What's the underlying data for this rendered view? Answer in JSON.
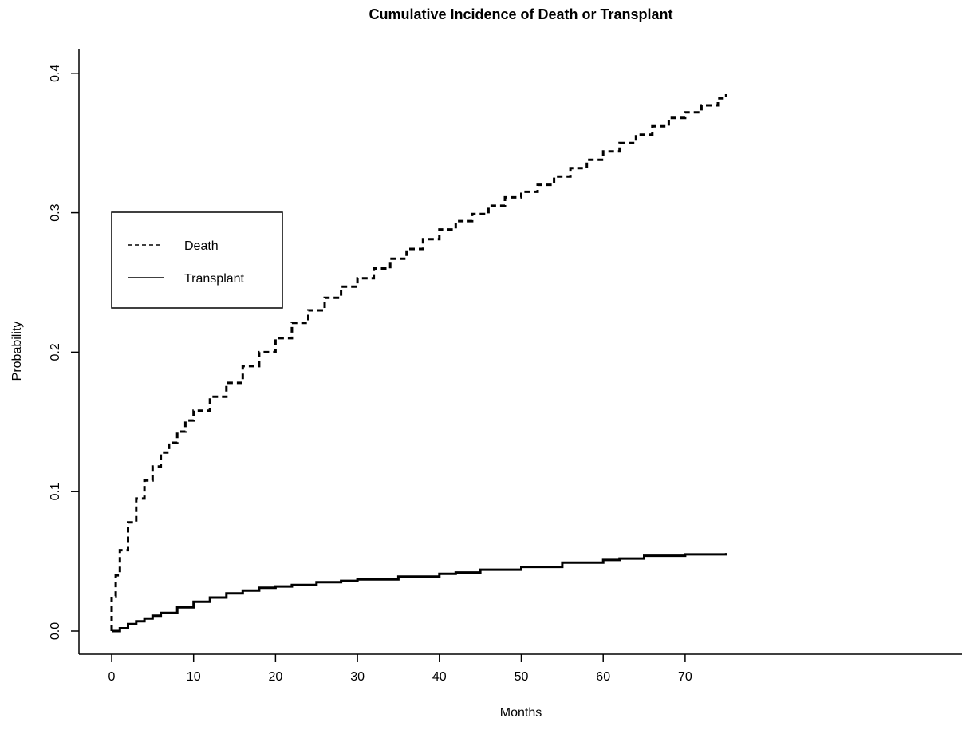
{
  "chart_data": {
    "type": "line",
    "title": "Cumulative Incidence of Death or Transplant",
    "xlabel": "Months",
    "ylabel": "Probability",
    "xlim": [
      0,
      75
    ],
    "ylim": [
      0,
      0.4
    ],
    "x_ticks": [
      "0",
      "10",
      "20",
      "30",
      "40",
      "50",
      "60",
      "70"
    ],
    "y_ticks": [
      "0.0",
      "0.1",
      "0.2",
      "0.3",
      "0.4"
    ],
    "legend": {
      "position": "top-left",
      "entries": [
        "Death",
        "Transplant"
      ]
    },
    "grid": false,
    "series": [
      {
        "name": "Death",
        "line_style": "dashed",
        "x": [
          0,
          0.5,
          1,
          2,
          3,
          4,
          5,
          6,
          7,
          8,
          9,
          10,
          12,
          14,
          16,
          18,
          20,
          22,
          24,
          26,
          28,
          30,
          32,
          34,
          36,
          38,
          40,
          42,
          44,
          46,
          48,
          50,
          52,
          54,
          56,
          58,
          60,
          62,
          64,
          66,
          68,
          70,
          72,
          74,
          75
        ],
        "y": [
          0.025,
          0.04,
          0.058,
          0.078,
          0.095,
          0.108,
          0.118,
          0.128,
          0.135,
          0.143,
          0.151,
          0.158,
          0.168,
          0.178,
          0.19,
          0.2,
          0.21,
          0.221,
          0.23,
          0.239,
          0.247,
          0.253,
          0.26,
          0.267,
          0.274,
          0.281,
          0.288,
          0.294,
          0.299,
          0.305,
          0.311,
          0.315,
          0.32,
          0.326,
          0.332,
          0.338,
          0.344,
          0.35,
          0.356,
          0.362,
          0.368,
          0.372,
          0.377,
          0.382,
          0.385
        ]
      },
      {
        "name": "Transplant",
        "line_style": "solid",
        "x": [
          0,
          1,
          2,
          3,
          4,
          5,
          6,
          8,
          10,
          12,
          14,
          16,
          18,
          20,
          22,
          25,
          28,
          30,
          35,
          40,
          42,
          45,
          50,
          55,
          60,
          62,
          65,
          70,
          75
        ],
        "y": [
          0,
          0.002,
          0.005,
          0.007,
          0.009,
          0.011,
          0.013,
          0.017,
          0.021,
          0.024,
          0.027,
          0.029,
          0.031,
          0.032,
          0.033,
          0.035,
          0.036,
          0.037,
          0.039,
          0.041,
          0.042,
          0.044,
          0.046,
          0.049,
          0.051,
          0.052,
          0.054,
          0.055,
          0.056
        ]
      }
    ]
  }
}
